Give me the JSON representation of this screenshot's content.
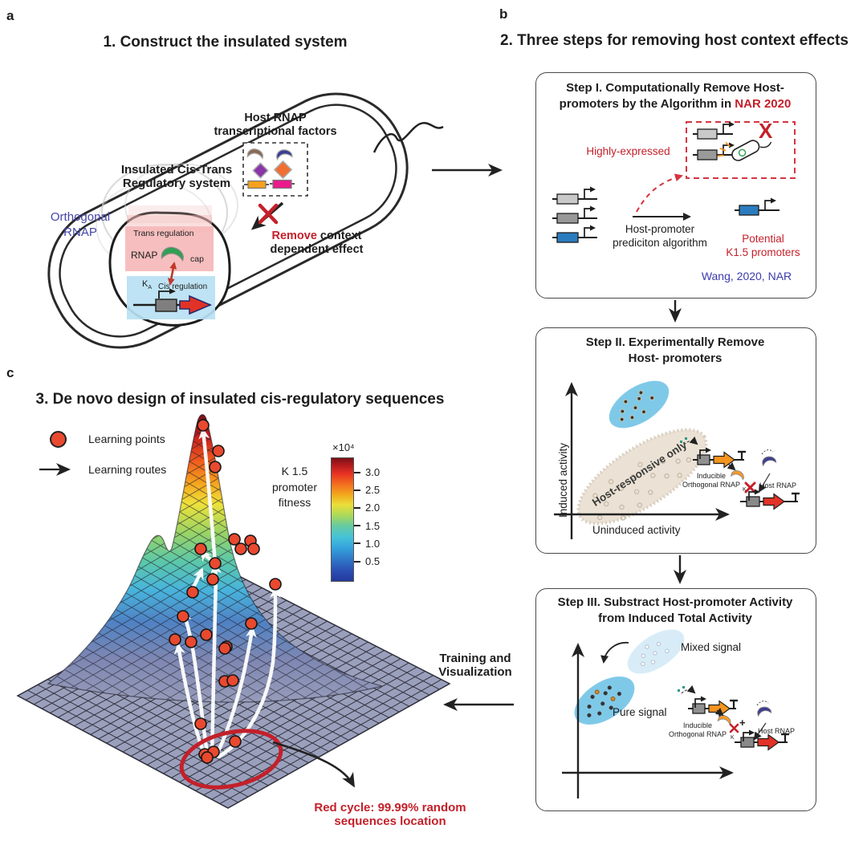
{
  "panel_a": {
    "label": "a",
    "title": "1. Construct the insulated system",
    "host_factors": "Host RNAP\ntranscriptional factors",
    "insulated": "Insulated Cis-Trans\nRegulatory system",
    "orthogonal": "Orthogonal\nRNAP",
    "remove_red": "Remove",
    "remove_black": " context\ndependent effect",
    "trans_regulation": "Trans regulation",
    "rnap": "RNAP",
    "cap": "cap",
    "ka_main": "K",
    "ka_sub": "A",
    "cis_regulation": "Cis regulation"
  },
  "panel_b": {
    "label": "b",
    "title": "2. Three steps for removing host context effects",
    "step1": {
      "title_l1": "Step I. Computationally Remove Host-",
      "title_l2": "promoters by the Algorithm in ",
      "title_l2_red": "NAR 2020",
      "highly_expressed": "Highly-expressed",
      "x_mark": "X",
      "algorithm": "Host-promoter\nprediciton algorithm",
      "potential": "Potential\nK1.5 promoters",
      "citation": "Wang, 2020, NAR"
    },
    "step2": {
      "title": "Step II. Experimentally Remove\nHost- promoters",
      "y_axis": "Induced activity",
      "x_axis": "Uninduced activity",
      "host_responsive": "Host-responsive only",
      "inducible": "Inducible\nOrthogonal RNAP",
      "k": "K",
      "host_rnap": "Host RNAP"
    },
    "step3": {
      "title": "Step III. Substract Host-promoter Activity\nfrom Induced Total Activity",
      "mixed": "Mixed signal",
      "pure": "Pure signal",
      "inducible": "Inducible\nOrthogonal RNAP",
      "plus": "+",
      "k": "K",
      "host_rnap": "Host RNAP"
    }
  },
  "panel_c": {
    "label": "c",
    "title": "3. De novo design of insulated cis-regulatory sequences",
    "legend_points": "Learning points",
    "legend_routes": "Learning routes",
    "fitness_label": "K 1.5\npromoter\nfitness",
    "colorbar_exponent": "×10⁴",
    "ticks": [
      "3.0",
      "2.5",
      "2.0",
      "1.5",
      "1.0",
      "0.5"
    ],
    "training": "Training and\nVisualization",
    "caption": "Red cycle: 99.99% random\nsequences location"
  },
  "colors": {
    "accent_red": "#c4202a",
    "citation_blue": "#3b3bad",
    "orthogonal_blue": "#4545aa",
    "learning_point": "#e8492f",
    "floor_mesh": "#9aa0bc"
  },
  "chart_data": {
    "type": "surface",
    "title": "K 1.5 promoter fitness landscape",
    "z_scale_label": "×10⁴",
    "colorbar_ticks": [
      3.0,
      2.5,
      2.0,
      1.5,
      1.0,
      0.5
    ],
    "legend": [
      "Learning points",
      "Learning routes"
    ],
    "annotation": "Red cycle: 99.99% random sequences location",
    "learning_points": [
      [
        245,
        25
      ],
      [
        264,
        57
      ],
      [
        260,
        77
      ],
      [
        284,
        167
      ],
      [
        304,
        169
      ],
      [
        292,
        179
      ],
      [
        308,
        179
      ],
      [
        242,
        179
      ],
      [
        260,
        197
      ],
      [
        257,
        217
      ],
      [
        232,
        233
      ],
      [
        335,
        223
      ],
      [
        220,
        263
      ],
      [
        249,
        286
      ],
      [
        274,
        301
      ],
      [
        305,
        272
      ],
      [
        210,
        292
      ],
      [
        230,
        295
      ],
      [
        272,
        303
      ],
      [
        272,
        344
      ],
      [
        282,
        343
      ],
      [
        242,
        397
      ],
      [
        285,
        419
      ],
      [
        247,
        435
      ],
      [
        258,
        432
      ],
      [
        250,
        439
      ]
    ],
    "learning_routes": [
      "M251,441 C245,400 238,335 231,298 C227,278 224,268 221,260",
      "M256,438 C257,390 258,330 260,255 C261,225 261,210 260,200",
      "M260,196 C256,150 250,75 245,32",
      "M261,437 C276,408 292,355 299,318 C303,298 305,288 306,279",
      "M249,439 C236,415 222,345 214,300",
      "M264,438 C300,418 325,370 332,320 C335,290 335,255 335,230",
      "M259,196 C252,190 247,187 244,183",
      "M291,178 C296,173 300,171 303,170",
      "M230,232 C236,221 240,213 243,206"
    ]
  }
}
